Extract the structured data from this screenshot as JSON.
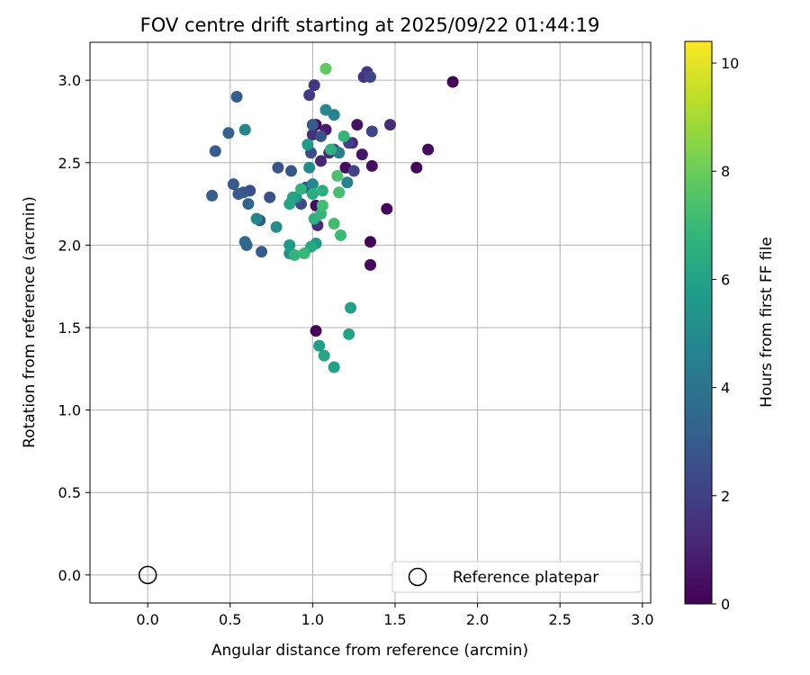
{
  "chart_data": {
    "type": "scatter",
    "title": "FOV centre drift starting at 2025/09/22 01:44:19",
    "xlabel": "Angular distance from reference (arcmin)",
    "ylabel": "Rotation from reference (arcmin)",
    "xlim": [
      -0.35,
      3.05
    ],
    "ylim": [
      -0.17,
      3.23
    ],
    "x_ticks": [
      0.0,
      0.5,
      1.0,
      1.5,
      2.0,
      2.5,
      3.0
    ],
    "x_tick_labels": [
      "0.0",
      "0.5",
      "1.0",
      "1.5",
      "2.0",
      "2.5",
      "3.0"
    ],
    "y_ticks": [
      0.0,
      0.5,
      1.0,
      1.5,
      2.0,
      2.5,
      3.0
    ],
    "y_tick_labels": [
      "0.0",
      "0.5",
      "1.0",
      "1.5",
      "2.0",
      "2.5",
      "3.0"
    ],
    "grid": true,
    "colorbar": {
      "label": "Hours from first FF file",
      "min": 0,
      "max": 10.4,
      "ticks": [
        0,
        2,
        4,
        6,
        8,
        10
      ],
      "tick_labels": [
        "0",
        "2",
        "4",
        "6",
        "8",
        "10"
      ],
      "colormap": "viridis"
    },
    "colormap_stops": [
      "#440154",
      "#482878",
      "#3e4989",
      "#31688e",
      "#26828e",
      "#1f9e89",
      "#35b779",
      "#6ece58",
      "#b5de2b",
      "#fde725"
    ],
    "legend": {
      "label": "Reference platepar",
      "position": "lower-right"
    },
    "reference_point": {
      "x": 0.0,
      "y": 0.0
    },
    "points": [
      {
        "x": 1.02,
        "y": 2.73,
        "h": 0.2
      },
      {
        "x": 1.85,
        "y": 2.99,
        "h": 0.1
      },
      {
        "x": 1.63,
        "y": 2.47,
        "h": 0.1
      },
      {
        "x": 1.7,
        "y": 2.58,
        "h": 0.3
      },
      {
        "x": 1.45,
        "y": 2.22,
        "h": 0.2
      },
      {
        "x": 1.35,
        "y": 2.02,
        "h": 0.1
      },
      {
        "x": 1.35,
        "y": 1.88,
        "h": 0.2
      },
      {
        "x": 1.02,
        "y": 1.48,
        "h": 0.1
      },
      {
        "x": 1.36,
        "y": 2.48,
        "h": 0.4
      },
      {
        "x": 1.27,
        "y": 2.73,
        "h": 0.5
      },
      {
        "x": 1.3,
        "y": 2.55,
        "h": 0.6
      },
      {
        "x": 1.2,
        "y": 2.47,
        "h": 0.3
      },
      {
        "x": 1.02,
        "y": 2.24,
        "h": 0.4
      },
      {
        "x": 1.47,
        "y": 2.73,
        "h": 1.3
      },
      {
        "x": 1.24,
        "y": 2.62,
        "h": 1.0
      },
      {
        "x": 1.08,
        "y": 2.7,
        "h": 0.8
      },
      {
        "x": 1.05,
        "y": 2.51,
        "h": 1.1
      },
      {
        "x": 1.0,
        "y": 2.67,
        "h": 1.5
      },
      {
        "x": 1.03,
        "y": 2.12,
        "h": 1.4
      },
      {
        "x": 1.1,
        "y": 2.56,
        "h": 1.3
      },
      {
        "x": 1.31,
        "y": 3.02,
        "h": 1.6
      },
      {
        "x": 1.33,
        "y": 3.05,
        "h": 1.8
      },
      {
        "x": 1.35,
        "y": 3.02,
        "h": 2.2
      },
      {
        "x": 1.01,
        "y": 2.97,
        "h": 1.7
      },
      {
        "x": 0.98,
        "y": 2.91,
        "h": 1.9
      },
      {
        "x": 1.36,
        "y": 2.69,
        "h": 2.2
      },
      {
        "x": 1.22,
        "y": 2.62,
        "h": 2.0
      },
      {
        "x": 1.25,
        "y": 2.45,
        "h": 2.1
      },
      {
        "x": 1.13,
        "y": 2.58,
        "h": 2.3
      },
      {
        "x": 0.99,
        "y": 2.56,
        "h": 2.5
      },
      {
        "x": 1.05,
        "y": 2.66,
        "h": 2.6
      },
      {
        "x": 1.0,
        "y": 2.73,
        "h": 2.9
      },
      {
        "x": 0.96,
        "y": 2.35,
        "h": 2.3
      },
      {
        "x": 0.93,
        "y": 2.25,
        "h": 2.4
      },
      {
        "x": 0.87,
        "y": 2.45,
        "h": 2.8
      },
      {
        "x": 0.79,
        "y": 2.47,
        "h": 2.7
      },
      {
        "x": 0.74,
        "y": 2.29,
        "h": 2.6
      },
      {
        "x": 0.62,
        "y": 2.33,
        "h": 2.5
      },
      {
        "x": 0.58,
        "y": 2.32,
        "h": 2.8
      },
      {
        "x": 0.55,
        "y": 2.31,
        "h": 2.9
      },
      {
        "x": 0.52,
        "y": 2.37,
        "h": 3.0
      },
      {
        "x": 0.39,
        "y": 2.3,
        "h": 3.1
      },
      {
        "x": 0.41,
        "y": 2.57,
        "h": 3.0
      },
      {
        "x": 0.49,
        "y": 2.68,
        "h": 3.2
      },
      {
        "x": 0.54,
        "y": 2.9,
        "h": 3.1
      },
      {
        "x": 0.61,
        "y": 2.25,
        "h": 3.3
      },
      {
        "x": 0.68,
        "y": 2.15,
        "h": 2.9
      },
      {
        "x": 0.69,
        "y": 1.96,
        "h": 3.0
      },
      {
        "x": 0.6,
        "y": 2.0,
        "h": 3.4
      },
      {
        "x": 0.59,
        "y": 2.02,
        "h": 3.5
      },
      {
        "x": 0.59,
        "y": 2.7,
        "h": 4.8
      },
      {
        "x": 1.08,
        "y": 2.82,
        "h": 4.9
      },
      {
        "x": 1.13,
        "y": 2.79,
        "h": 4.7
      },
      {
        "x": 1.21,
        "y": 2.38,
        "h": 4.6
      },
      {
        "x": 1.16,
        "y": 2.56,
        "h": 4.5
      },
      {
        "x": 0.98,
        "y": 2.47,
        "h": 5.0
      },
      {
        "x": 1.0,
        "y": 2.37,
        "h": 4.9
      },
      {
        "x": 0.66,
        "y": 2.16,
        "h": 4.8
      },
      {
        "x": 0.78,
        "y": 2.11,
        "h": 5.1
      },
      {
        "x": 0.86,
        "y": 1.95,
        "h": 5.2
      },
      {
        "x": 0.9,
        "y": 2.29,
        "h": 5.3
      },
      {
        "x": 0.97,
        "y": 2.61,
        "h": 5.6
      },
      {
        "x": 1.02,
        "y": 2.01,
        "h": 5.5
      },
      {
        "x": 0.86,
        "y": 2.0,
        "h": 5.7
      },
      {
        "x": 1.04,
        "y": 1.39,
        "h": 5.8
      },
      {
        "x": 1.13,
        "y": 1.26,
        "h": 5.9
      },
      {
        "x": 1.23,
        "y": 1.62,
        "h": 5.9
      },
      {
        "x": 1.22,
        "y": 1.46,
        "h": 6.0
      },
      {
        "x": 1.07,
        "y": 1.33,
        "h": 6.2
      },
      {
        "x": 0.88,
        "y": 2.29,
        "h": 6.0
      },
      {
        "x": 0.86,
        "y": 2.25,
        "h": 6.1
      },
      {
        "x": 0.99,
        "y": 1.99,
        "h": 6.3
      },
      {
        "x": 1.0,
        "y": 2.31,
        "h": 6.4
      },
      {
        "x": 1.06,
        "y": 2.33,
        "h": 6.5
      },
      {
        "x": 1.11,
        "y": 2.58,
        "h": 6.6
      },
      {
        "x": 0.93,
        "y": 2.34,
        "h": 6.7
      },
      {
        "x": 1.01,
        "y": 2.16,
        "h": 6.6
      },
      {
        "x": 1.05,
        "y": 2.19,
        "h": 6.8
      },
      {
        "x": 1.19,
        "y": 2.66,
        "h": 6.9
      },
      {
        "x": 0.89,
        "y": 1.94,
        "h": 6.8
      },
      {
        "x": 0.95,
        "y": 1.95,
        "h": 7.0
      },
      {
        "x": 1.17,
        "y": 2.06,
        "h": 7.1
      },
      {
        "x": 1.13,
        "y": 2.13,
        "h": 7.2
      },
      {
        "x": 1.16,
        "y": 2.32,
        "h": 7.3
      },
      {
        "x": 1.15,
        "y": 2.42,
        "h": 7.4
      },
      {
        "x": 1.06,
        "y": 2.24,
        "h": 7.2
      },
      {
        "x": 1.08,
        "y": 3.07,
        "h": 7.8
      }
    ]
  }
}
